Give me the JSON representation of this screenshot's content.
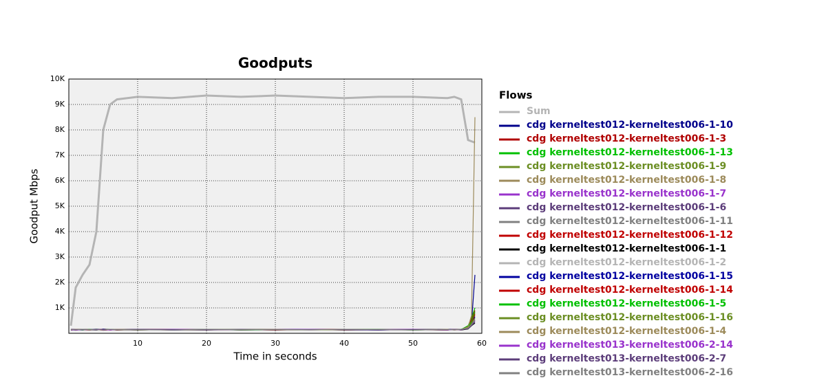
{
  "chart_data": {
    "type": "line",
    "title": "Goodputs",
    "x_label": "Time in seconds",
    "y_label": "Goodput Mbps",
    "legend_title": "Flows",
    "xlim": [
      0,
      60
    ],
    "xticks": [
      10,
      20,
      30,
      40,
      50,
      60
    ],
    "ylim": [
      0,
      10000
    ],
    "yticks": [
      {
        "value": 1000,
        "label": "1K"
      },
      {
        "value": 2000,
        "label": "2K"
      },
      {
        "value": 3000,
        "label": "3K"
      },
      {
        "value": 4000,
        "label": "4K"
      },
      {
        "value": 5000,
        "label": "5K"
      },
      {
        "value": 6000,
        "label": "6K"
      },
      {
        "value": 7000,
        "label": "7K"
      },
      {
        "value": 8000,
        "label": "8K"
      },
      {
        "value": 9000,
        "label": "9K"
      },
      {
        "value": 10000,
        "label": "10K"
      }
    ],
    "grid": true,
    "x": [
      0.3,
      1,
      2,
      3,
      4,
      5,
      6,
      7,
      10,
      15,
      20,
      25,
      30,
      35,
      40,
      45,
      50,
      55,
      56,
      57,
      58,
      58.5,
      59
    ],
    "series": [
      {
        "name": "Sum",
        "color": "#b4b4b4",
        "values": [
          300,
          1800,
          2300,
          2700,
          4000,
          8000,
          9000,
          9200,
          9300,
          9250,
          9350,
          9300,
          9350,
          9300,
          9250,
          9300,
          9300,
          9250,
          9300,
          9200,
          7600,
          7550,
          7500
        ]
      },
      {
        "name": "cdg kerneltest012-kerneltest006-1-10",
        "color": "#00008b",
        "values": [
          150,
          120,
          160,
          140,
          130,
          170,
          150,
          140,
          160,
          150,
          140,
          150,
          160,
          140,
          150,
          130,
          160,
          150,
          140,
          150,
          200,
          400,
          2300
        ]
      },
      {
        "name": "cdg kerneltest012-kerneltest006-1-3",
        "color": "#b00000",
        "values": [
          130,
          150,
          140,
          160,
          150,
          120,
          140,
          160,
          150,
          130,
          160,
          140,
          150,
          160,
          130,
          150,
          140,
          160,
          150,
          140,
          250,
          500,
          800
        ]
      },
      {
        "name": "cdg kerneltest012-kerneltest006-1-13",
        "color": "#00c000",
        "values": [
          160,
          140,
          130,
          150,
          170,
          150,
          130,
          150,
          140,
          160,
          150,
          130,
          140,
          150,
          160,
          140,
          150,
          130,
          160,
          150,
          300,
          600,
          1000
        ]
      },
      {
        "name": "cdg kerneltest012-kerneltest006-1-9",
        "color": "#6b8e23",
        "values": [
          140,
          160,
          150,
          130,
          140,
          160,
          150,
          130,
          150,
          140,
          130,
          160,
          150,
          140,
          150,
          160,
          130,
          150,
          140,
          160,
          220,
          450,
          700
        ]
      },
      {
        "name": "cdg kerneltest012-kerneltest006-1-8",
        "color": "#9c8a5a",
        "values": [
          150,
          130,
          150,
          150,
          160,
          140,
          160,
          150,
          130,
          150,
          160,
          150,
          130,
          150,
          140,
          150,
          160,
          140,
          150,
          130,
          200,
          400,
          600
        ]
      },
      {
        "name": "cdg kerneltest012-kerneltest006-1-7",
        "color": "#9933cc",
        "values": [
          120,
          150,
          160,
          140,
          150,
          130,
          150,
          140,
          160,
          150,
          150,
          140,
          160,
          130,
          150,
          140,
          150,
          160,
          130,
          150,
          180,
          350,
          500
        ]
      },
      {
        "name": "cdg kerneltest012-kerneltest006-1-6",
        "color": "#5c3d7a",
        "values": [
          160,
          150,
          130,
          160,
          140,
          150,
          140,
          160,
          150,
          130,
          140,
          160,
          150,
          150,
          140,
          160,
          150,
          130,
          150,
          160,
          200,
          300,
          450
        ]
      },
      {
        "name": "cdg kerneltest012-kerneltest006-1-11",
        "color": "#808080",
        "values": [
          140,
          130,
          150,
          150,
          160,
          140,
          150,
          130,
          140,
          160,
          150,
          150,
          130,
          160,
          150,
          140,
          130,
          150,
          160,
          140,
          190,
          350,
          550
        ]
      },
      {
        "name": "cdg kerneltest012-kerneltest006-1-12",
        "color": "#c00000",
        "values": [
          150,
          160,
          140,
          130,
          150,
          160,
          130,
          150,
          160,
          140,
          160,
          130,
          150,
          140,
          160,
          150,
          140,
          160,
          140,
          150,
          260,
          550,
          900
        ]
      },
      {
        "name": "cdg kerneltest012-kerneltest006-1-1",
        "color": "#000000",
        "values": [
          130,
          140,
          160,
          150,
          130,
          150,
          160,
          140,
          130,
          150,
          140,
          150,
          160,
          150,
          130,
          140,
          160,
          140,
          150,
          130,
          170,
          300,
          400
        ]
      },
      {
        "name": "cdg kerneltest012-kerneltest006-1-2",
        "color": "#b4b4b4",
        "values": [
          150,
          150,
          140,
          160,
          150,
          140,
          150,
          160,
          140,
          150,
          150,
          160,
          140,
          130,
          150,
          160,
          150,
          150,
          130,
          160,
          200,
          320,
          500
        ]
      },
      {
        "name": "cdg kerneltest012-kerneltest006-1-15",
        "color": "#0000a0",
        "values": [
          140,
          160,
          150,
          140,
          160,
          130,
          140,
          150,
          160,
          130,
          150,
          140,
          150,
          160,
          140,
          130,
          150,
          160,
          150,
          140,
          210,
          380,
          650
        ]
      },
      {
        "name": "cdg kerneltest012-kerneltest006-1-14",
        "color": "#c00000",
        "values": [
          160,
          130,
          150,
          150,
          140,
          160,
          150,
          130,
          150,
          160,
          140,
          150,
          130,
          150,
          160,
          150,
          140,
          130,
          160,
          150,
          230,
          420,
          750
        ]
      },
      {
        "name": "cdg kerneltest012-kerneltest006-1-5",
        "color": "#00c000",
        "values": [
          150,
          140,
          130,
          160,
          150,
          150,
          160,
          140,
          150,
          140,
          160,
          130,
          150,
          140,
          150,
          160,
          130,
          150,
          140,
          160,
          240,
          480,
          850
        ]
      },
      {
        "name": "cdg kerneltest012-kerneltest006-1-16",
        "color": "#6b8e23",
        "values": [
          130,
          150,
          160,
          140,
          130,
          160,
          140,
          150,
          130,
          150,
          150,
          160,
          140,
          150,
          130,
          150,
          160,
          140,
          150,
          140,
          210,
          400,
          600
        ]
      },
      {
        "name": "cdg kerneltest012-kerneltest006-1-4",
        "color": "#9c8a5a",
        "values": [
          150,
          160,
          150,
          130,
          150,
          140,
          150,
          160,
          150,
          140,
          130,
          150,
          160,
          140,
          150,
          150,
          140,
          160,
          130,
          150,
          250,
          700,
          8500
        ]
      },
      {
        "name": "cdg kerneltest013-kerneltest006-2-14",
        "color": "#9933cc",
        "values": [
          140,
          130,
          140,
          150,
          160,
          150,
          130,
          150,
          140,
          160,
          150,
          140,
          150,
          160,
          140,
          150,
          160,
          130,
          150,
          140,
          190,
          330,
          500
        ]
      },
      {
        "name": "cdg kerneltest013-kerneltest006-2-7",
        "color": "#5c3d7a",
        "values": [
          160,
          150,
          150,
          140,
          130,
          160,
          150,
          140,
          160,
          150,
          130,
          160,
          140,
          150,
          150,
          130,
          150,
          140,
          160,
          150,
          180,
          310,
          450
        ]
      },
      {
        "name": "cdg kerneltest013-kerneltest006-2-16",
        "color": "#808080",
        "values": [
          150,
          140,
          160,
          150,
          140,
          130,
          160,
          150,
          140,
          130,
          160,
          150,
          150,
          140,
          160,
          150,
          130,
          150,
          140,
          160,
          200,
          340,
          520
        ]
      }
    ]
  }
}
